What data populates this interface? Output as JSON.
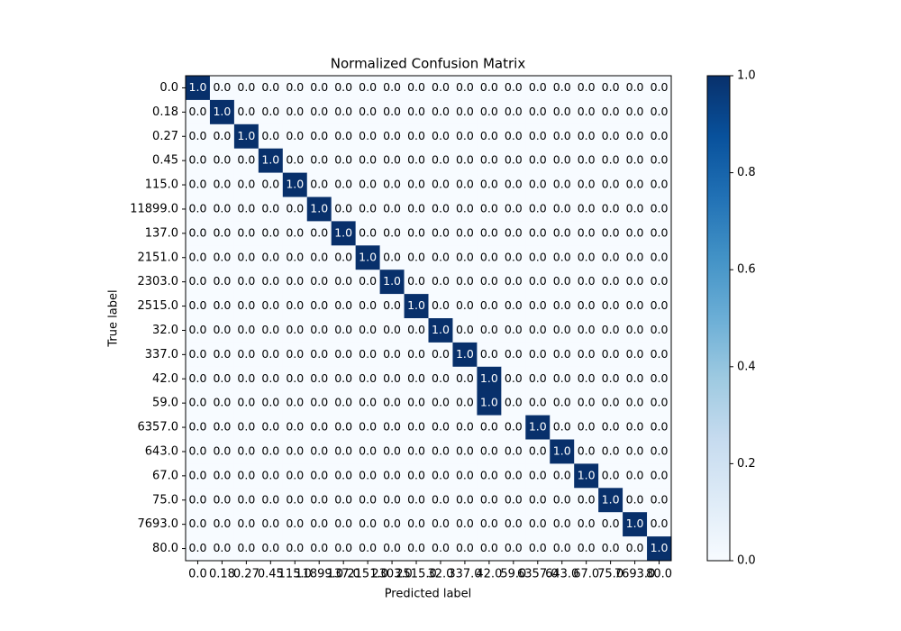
{
  "chart_data": {
    "type": "heatmap",
    "title": "Normalized Confusion Matrix",
    "xlabel": "Predicted label",
    "ylabel": "True label",
    "x_categories": [
      "0.0",
      "0.18",
      "0.27",
      "0.45",
      "115.0",
      "11899.0",
      "137.0",
      "2151.0",
      "2303.0",
      "2515.0",
      "32.0",
      "337.0",
      "42.0",
      "59.0",
      "6357.0",
      "643.0",
      "67.0",
      "75.0",
      "7693.0",
      "80.0"
    ],
    "y_categories": [
      "0.0",
      "0.18",
      "0.27",
      "0.45",
      "115.0",
      "11899.0",
      "137.0",
      "2151.0",
      "2303.0",
      "2515.0",
      "32.0",
      "337.0",
      "42.0",
      "59.0",
      "6357.0",
      "643.0",
      "67.0",
      "75.0",
      "7693.0",
      "80.0"
    ],
    "values": [
      [
        1,
        0,
        0,
        0,
        0,
        0,
        0,
        0,
        0,
        0,
        0,
        0,
        0,
        0,
        0,
        0,
        0,
        0,
        0,
        0
      ],
      [
        0,
        1,
        0,
        0,
        0,
        0,
        0,
        0,
        0,
        0,
        0,
        0,
        0,
        0,
        0,
        0,
        0,
        0,
        0,
        0
      ],
      [
        0,
        0,
        1,
        0,
        0,
        0,
        0,
        0,
        0,
        0,
        0,
        0,
        0,
        0,
        0,
        0,
        0,
        0,
        0,
        0
      ],
      [
        0,
        0,
        0,
        1,
        0,
        0,
        0,
        0,
        0,
        0,
        0,
        0,
        0,
        0,
        0,
        0,
        0,
        0,
        0,
        0
      ],
      [
        0,
        0,
        0,
        0,
        1,
        0,
        0,
        0,
        0,
        0,
        0,
        0,
        0,
        0,
        0,
        0,
        0,
        0,
        0,
        0
      ],
      [
        0,
        0,
        0,
        0,
        0,
        1,
        0,
        0,
        0,
        0,
        0,
        0,
        0,
        0,
        0,
        0,
        0,
        0,
        0,
        0
      ],
      [
        0,
        0,
        0,
        0,
        0,
        0,
        1,
        0,
        0,
        0,
        0,
        0,
        0,
        0,
        0,
        0,
        0,
        0,
        0,
        0
      ],
      [
        0,
        0,
        0,
        0,
        0,
        0,
        0,
        1,
        0,
        0,
        0,
        0,
        0,
        0,
        0,
        0,
        0,
        0,
        0,
        0
      ],
      [
        0,
        0,
        0,
        0,
        0,
        0,
        0,
        0,
        1,
        0,
        0,
        0,
        0,
        0,
        0,
        0,
        0,
        0,
        0,
        0
      ],
      [
        0,
        0,
        0,
        0,
        0,
        0,
        0,
        0,
        0,
        1,
        0,
        0,
        0,
        0,
        0,
        0,
        0,
        0,
        0,
        0
      ],
      [
        0,
        0,
        0,
        0,
        0,
        0,
        0,
        0,
        0,
        0,
        1,
        0,
        0,
        0,
        0,
        0,
        0,
        0,
        0,
        0
      ],
      [
        0,
        0,
        0,
        0,
        0,
        0,
        0,
        0,
        0,
        0,
        0,
        1,
        0,
        0,
        0,
        0,
        0,
        0,
        0,
        0
      ],
      [
        0,
        0,
        0,
        0,
        0,
        0,
        0,
        0,
        0,
        0,
        0,
        0,
        1,
        0,
        0,
        0,
        0,
        0,
        0,
        0
      ],
      [
        0,
        0,
        0,
        0,
        0,
        0,
        0,
        0,
        0,
        0,
        0,
        0,
        1,
        0,
        0,
        0,
        0,
        0,
        0,
        0
      ],
      [
        0,
        0,
        0,
        0,
        0,
        0,
        0,
        0,
        0,
        0,
        0,
        0,
        0,
        0,
        1,
        0,
        0,
        0,
        0,
        0
      ],
      [
        0,
        0,
        0,
        0,
        0,
        0,
        0,
        0,
        0,
        0,
        0,
        0,
        0,
        0,
        0,
        1,
        0,
        0,
        0,
        0
      ],
      [
        0,
        0,
        0,
        0,
        0,
        0,
        0,
        0,
        0,
        0,
        0,
        0,
        0,
        0,
        0,
        0,
        1,
        0,
        0,
        0
      ],
      [
        0,
        0,
        0,
        0,
        0,
        0,
        0,
        0,
        0,
        0,
        0,
        0,
        0,
        0,
        0,
        0,
        0,
        1,
        0,
        0
      ],
      [
        0,
        0,
        0,
        0,
        0,
        0,
        0,
        0,
        0,
        0,
        0,
        0,
        0,
        0,
        0,
        0,
        0,
        0,
        1,
        0
      ],
      [
        0,
        0,
        0,
        0,
        0,
        0,
        0,
        0,
        0,
        0,
        0,
        0,
        0,
        0,
        0,
        0,
        0,
        0,
        0,
        1
      ]
    ],
    "value_labels": [
      [
        "1.0",
        "0.0",
        "0.0",
        "0.0",
        "0.0",
        "0.0",
        "0.0",
        "0.0",
        "0.0",
        "0.0",
        "0.0",
        "0.0",
        "0.0",
        "0.0",
        "0.0",
        "0.0",
        "0.0",
        "0.0",
        "0.0",
        "0.0"
      ],
      [
        "0.0",
        "1.0",
        "0.0",
        "0.0",
        "0.0",
        "0.0",
        "0.0",
        "0.0",
        "0.0",
        "0.0",
        "0.0",
        "0.0",
        "0.0",
        "0.0",
        "0.0",
        "0.0",
        "0.0",
        "0.0",
        "0.0",
        "0.0"
      ],
      [
        "0.0",
        "0.0",
        "1.0",
        "0.0",
        "0.0",
        "0.0",
        "0.0",
        "0.0",
        "0.0",
        "0.0",
        "0.0",
        "0.0",
        "0.0",
        "0.0",
        "0.0",
        "0.0",
        "0.0",
        "0.0",
        "0.0",
        "0.0"
      ],
      [
        "0.0",
        "0.0",
        "0.0",
        "1.0",
        "0.0",
        "0.0",
        "0.0",
        "0.0",
        "0.0",
        "0.0",
        "0.0",
        "0.0",
        "0.0",
        "0.0",
        "0.0",
        "0.0",
        "0.0",
        "0.0",
        "0.0",
        "0.0"
      ],
      [
        "0.0",
        "0.0",
        "0.0",
        "0.0",
        "1.0",
        "0.0",
        "0.0",
        "0.0",
        "0.0",
        "0.0",
        "0.0",
        "0.0",
        "0.0",
        "0.0",
        "0.0",
        "0.0",
        "0.0",
        "0.0",
        "0.0",
        "0.0"
      ],
      [
        "0.0",
        "0.0",
        "0.0",
        "0.0",
        "0.0",
        "1.0",
        "0.0",
        "0.0",
        "0.0",
        "0.0",
        "0.0",
        "0.0",
        "0.0",
        "0.0",
        "0.0",
        "0.0",
        "0.0",
        "0.0",
        "0.0",
        "0.0"
      ],
      [
        "0.0",
        "0.0",
        "0.0",
        "0.0",
        "0.0",
        "0.0",
        "1.0",
        "0.0",
        "0.0",
        "0.0",
        "0.0",
        "0.0",
        "0.0",
        "0.0",
        "0.0",
        "0.0",
        "0.0",
        "0.0",
        "0.0",
        "0.0"
      ],
      [
        "0.0",
        "0.0",
        "0.0",
        "0.0",
        "0.0",
        "0.0",
        "0.0",
        "1.0",
        "0.0",
        "0.0",
        "0.0",
        "0.0",
        "0.0",
        "0.0",
        "0.0",
        "0.0",
        "0.0",
        "0.0",
        "0.0",
        "0.0"
      ],
      [
        "0.0",
        "0.0",
        "0.0",
        "0.0",
        "0.0",
        "0.0",
        "0.0",
        "0.0",
        "1.0",
        "0.0",
        "0.0",
        "0.0",
        "0.0",
        "0.0",
        "0.0",
        "0.0",
        "0.0",
        "0.0",
        "0.0",
        "0.0"
      ],
      [
        "0.0",
        "0.0",
        "0.0",
        "0.0",
        "0.0",
        "0.0",
        "0.0",
        "0.0",
        "0.0",
        "1.0",
        "0.0",
        "0.0",
        "0.0",
        "0.0",
        "0.0",
        "0.0",
        "0.0",
        "0.0",
        "0.0",
        "0.0"
      ],
      [
        "0.0",
        "0.0",
        "0.0",
        "0.0",
        "0.0",
        "0.0",
        "0.0",
        "0.0",
        "0.0",
        "0.0",
        "1.0",
        "0.0",
        "0.0",
        "0.0",
        "0.0",
        "0.0",
        "0.0",
        "0.0",
        "0.0",
        "0.0"
      ],
      [
        "0.0",
        "0.0",
        "0.0",
        "0.0",
        "0.0",
        "0.0",
        "0.0",
        "0.0",
        "0.0",
        "0.0",
        "0.0",
        "1.0",
        "0.0",
        "0.0",
        "0.0",
        "0.0",
        "0.0",
        "0.0",
        "0.0",
        "0.0"
      ],
      [
        "0.0",
        "0.0",
        "0.0",
        "0.0",
        "0.0",
        "0.0",
        "0.0",
        "0.0",
        "0.0",
        "0.0",
        "0.0",
        "0.0",
        "1.0",
        "0.0",
        "0.0",
        "0.0",
        "0.0",
        "0.0",
        "0.0",
        "0.0"
      ],
      [
        "0.0",
        "0.0",
        "0.0",
        "0.0",
        "0.0",
        "0.0",
        "0.0",
        "0.0",
        "0.0",
        "0.0",
        "0.0",
        "0.0",
        "1.0",
        "0.0",
        "0.0",
        "0.0",
        "0.0",
        "0.0",
        "0.0",
        "0.0"
      ],
      [
        "0.0",
        "0.0",
        "0.0",
        "0.0",
        "0.0",
        "0.0",
        "0.0",
        "0.0",
        "0.0",
        "0.0",
        "0.0",
        "0.0",
        "0.0",
        "0.0",
        "1.0",
        "0.0",
        "0.0",
        "0.0",
        "0.0",
        "0.0"
      ],
      [
        "0.0",
        "0.0",
        "0.0",
        "0.0",
        "0.0",
        "0.0",
        "0.0",
        "0.0",
        "0.0",
        "0.0",
        "0.0",
        "0.0",
        "0.0",
        "0.0",
        "0.0",
        "1.0",
        "0.0",
        "0.0",
        "0.0",
        "0.0"
      ],
      [
        "0.0",
        "0.0",
        "0.0",
        "0.0",
        "0.0",
        "0.0",
        "0.0",
        "0.0",
        "0.0",
        "0.0",
        "0.0",
        "0.0",
        "0.0",
        "0.0",
        "0.0",
        "0.0",
        "1.0",
        "0.0",
        "0.0",
        "0.0"
      ],
      [
        "0.0",
        "0.0",
        "0.0",
        "0.0",
        "0.0",
        "0.0",
        "0.0",
        "0.0",
        "0.0",
        "0.0",
        "0.0",
        "0.0",
        "0.0",
        "0.0",
        "0.0",
        "0.0",
        "0.0",
        "1.0",
        "0.0",
        "0.0"
      ],
      [
        "0.0",
        "0.0",
        "0.0",
        "0.0",
        "0.0",
        "0.0",
        "0.0",
        "0.0",
        "0.0",
        "0.0",
        "0.0",
        "0.0",
        "0.0",
        "0.0",
        "0.0",
        "0.0",
        "0.0",
        "0.0",
        "1.0",
        "0.0"
      ],
      [
        "0.0",
        "0.0",
        "0.0",
        "0.0",
        "0.0",
        "0.0",
        "0.0",
        "0.0",
        "0.0",
        "0.0",
        "0.0",
        "0.0",
        "0.0",
        "0.0",
        "0.0",
        "0.0",
        "0.0",
        "0.0",
        "0.0",
        "1.0"
      ]
    ],
    "colormap": "Blues",
    "clim": [
      0,
      1
    ],
    "cbar_ticks": [
      {
        "value": 0,
        "label": "0.0"
      },
      {
        "value": 0.2,
        "label": "0.2"
      },
      {
        "value": 0.4,
        "label": "0.4"
      },
      {
        "value": 0.6,
        "label": "0.6"
      },
      {
        "value": 0.8,
        "label": "0.8"
      },
      {
        "value": 1,
        "label": "1.0"
      }
    ]
  }
}
